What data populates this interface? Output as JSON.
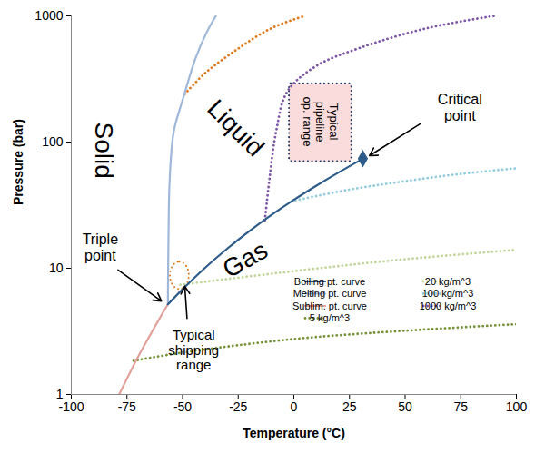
{
  "chart_data": {
    "type": "line",
    "x_label": "Temperature (°C)",
    "y_label": "Pressure (bar)",
    "xlim": [
      -100,
      100
    ],
    "xticks": [
      -100,
      -75,
      -50,
      -25,
      0,
      25,
      50,
      75,
      100
    ],
    "ylim": [
      1,
      1000
    ],
    "yticks": [
      1,
      10,
      100,
      1000
    ],
    "log": "y",
    "grid": false,
    "legend": "bottom-right",
    "series": [
      {
        "name": "Boiling pt. curve",
        "color": "#2e5c8a",
        "line_style": "solid",
        "x": [
          -56.6,
          -50,
          -40,
          -30,
          -20,
          -10,
          0,
          10,
          20,
          31
        ],
        "values": [
          5.18,
          6.82,
          10.05,
          14.28,
          19.7,
          26.5,
          34.85,
          45,
          57.3,
          73.8
        ]
      },
      {
        "name": "Melting pt. curve",
        "color": "#9fb8da",
        "line_style": "solid",
        "x": [
          -56.6,
          -56.3,
          -55.8,
          -54,
          -50,
          -44,
          -39,
          -35
        ],
        "values": [
          5.18,
          20,
          50,
          120,
          215,
          470,
          750,
          1000
        ]
      },
      {
        "name": "Sublim. pt. curve",
        "color": "#e3a09b",
        "line_style": "solid",
        "x": [
          -78.5,
          -70,
          -60,
          -56.6
        ],
        "values": [
          1,
          1.99,
          4.1,
          5.18
        ]
      },
      {
        "name": "5 kg/m^3",
        "color": "#77933c",
        "line_style": "dotted",
        "x": [
          -72,
          -50,
          0,
          50,
          100
        ],
        "values": [
          1.85,
          2.15,
          2.75,
          3.2,
          3.6
        ]
      },
      {
        "name": "20 kg/m^3",
        "color": "#c3d69b",
        "line_style": "dotted",
        "x": [
          -51,
          0,
          50,
          100
        ],
        "values": [
          7.4,
          9.5,
          11.8,
          14
        ]
      },
      {
        "name": "100 kg/m^3",
        "color": "#93cddd",
        "line_style": "dotted",
        "x": [
          -1,
          25,
          50,
          75,
          100
        ],
        "values": [
          34,
          42,
          49,
          56,
          62
        ]
      },
      {
        "name": "1000 kg/m^3",
        "color": "#7e57a5",
        "line_style": "dotted",
        "x": [
          -13,
          -11,
          -8,
          -3,
          10,
          30,
          60,
          90
        ],
        "values": [
          24,
          50,
          120,
          250,
          400,
          560,
          800,
          1000
        ]
      },
      {
        "color": "#e07b20",
        "line_style": "dotted",
        "x": [
          -49,
          -40,
          -25,
          -10,
          5
        ],
        "values": [
          240,
          350,
          550,
          800,
          1000
        ]
      }
    ],
    "critical_point": {
      "x": 31,
      "y": 73.8,
      "marker": "diamond",
      "color": "#2e5c8a"
    },
    "regions": [
      {
        "x": [
          -55.5,
          -47
        ],
        "y": [
          6.8,
          11.2
        ],
        "color": "#e07b20",
        "line_style": "dotted",
        "marker": "ellipse"
      },
      {
        "x": [
          -2,
          26
        ],
        "y": [
          70,
          290
        ],
        "color": "#1f3864",
        "fill": "#fadcdc",
        "line_style": "dotted",
        "marker": "rectangle"
      }
    ],
    "annotations": [
      {
        "text": "Solid",
        "x": -85,
        "y": 86
      },
      {
        "text": "Liquid",
        "x": -26,
        "y": 130
      },
      {
        "text": "Gas",
        "x": -22,
        "y": 11.8
      },
      {
        "text": "Triple\npoint",
        "x": -87,
        "y": 14.6,
        "arrow_from": [
          -79,
          9.7
        ],
        "arrow_to": [
          -59.5,
          5.5
        ]
      },
      {
        "text": "Critical\npoint",
        "x": 74.6,
        "y": 188,
        "arrow_from": [
          57,
          140
        ],
        "arrow_to": [
          34,
          78
        ]
      },
      {
        "text": "Typical\nshipping\nrange",
        "x": -45,
        "y": 2.25,
        "arrow_from": [
          -48,
          4.0
        ],
        "arrow_to": [
          -49,
          7.2
        ]
      },
      {
        "text": "Typical\npipeline\nop. range",
        "x": 12,
        "y": 145
      }
    ]
  }
}
